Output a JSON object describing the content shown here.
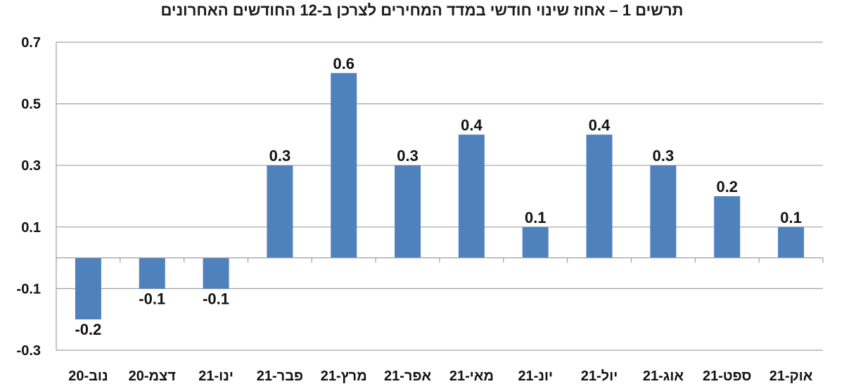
{
  "chart_data": {
    "type": "bar",
    "title": "תרשים 1 – אחוז שינוי חודשי במדד המחירים לצרכן ב-12 החודשים האחרונים",
    "categories": [
      "נוב-20",
      "דצמ-20",
      "ינו-21",
      "פבר-21",
      "מרץ-21",
      "אפר-21",
      "מאי-21",
      "יונ-21",
      "יול-21",
      "אוג-21",
      "ספט-21",
      "אוק-21"
    ],
    "values": [
      -0.2,
      -0.1,
      -0.1,
      0.3,
      0.6,
      0.3,
      0.4,
      0.1,
      0.4,
      0.3,
      0.2,
      0.1
    ],
    "value_labels": [
      "-0.2",
      "-0.1",
      "-0.1",
      "0.3",
      "0.6",
      "0.3",
      "0.4",
      "0.1",
      "0.4",
      "0.3",
      "0.2",
      "0.1"
    ],
    "yticks": [
      -0.3,
      -0.1,
      0.1,
      0.3,
      0.5,
      0.7
    ],
    "ytick_labels": [
      "-0.3",
      "-0.1",
      "0.1",
      "0.3",
      "0.5",
      "0.7"
    ],
    "ylim": [
      -0.3,
      0.7
    ],
    "xlabel": "",
    "ylabel": "",
    "grid": true,
    "legend": "none",
    "bar_color": "#4f81bd",
    "grid_color": "#a0a0a0"
  }
}
